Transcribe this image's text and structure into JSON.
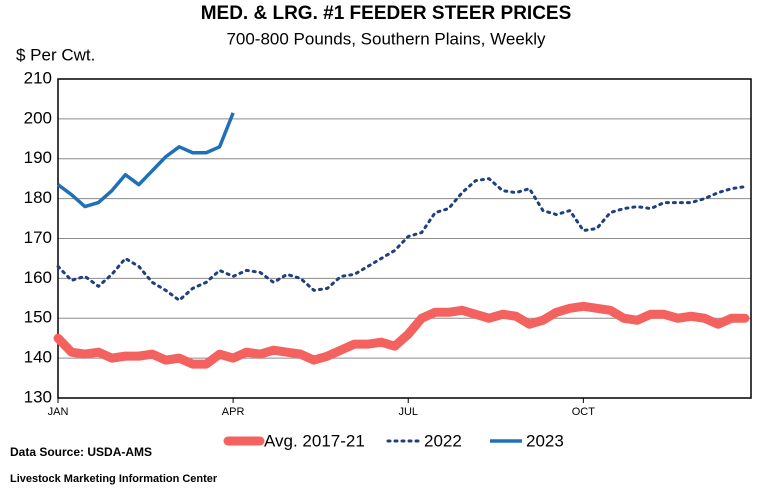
{
  "chart_data": {
    "type": "line",
    "title": "MED. & LRG. #1 FEEDER STEER PRICES",
    "subtitle": "700-800 Pounds, Southern Plains, Weekly",
    "y_label": "$ Per Cwt.",
    "source": "Data Source:  USDA-AMS",
    "credit": "Livestock Marketing Information Center",
    "categories": [
      "JAN",
      null,
      null,
      null,
      null,
      null,
      null,
      null,
      null,
      null,
      null,
      null,
      null,
      "APR",
      null,
      null,
      null,
      null,
      null,
      null,
      null,
      null,
      null,
      null,
      null,
      null,
      "JUL",
      null,
      null,
      null,
      null,
      null,
      null,
      null,
      null,
      null,
      null,
      null,
      null,
      "OCT",
      null,
      null,
      null,
      null,
      null,
      null,
      null,
      null,
      null,
      null,
      null,
      null
    ],
    "ylim": [
      130,
      210
    ],
    "yticks": [
      130,
      140,
      150,
      160,
      170,
      180,
      190,
      200,
      210
    ],
    "grid": true,
    "series": [
      {
        "name": "Avg. 2017-21",
        "color": "#f4625f",
        "style": "thick",
        "values": [
          145,
          141.5,
          141,
          141.5,
          140,
          140.5,
          140.5,
          141,
          139.5,
          140,
          138.5,
          138.5,
          141,
          140,
          141.5,
          141,
          142,
          141.5,
          141,
          139.5,
          140.5,
          142,
          143.5,
          143.5,
          144,
          143,
          146,
          150,
          151.5,
          151.5,
          152,
          151,
          150,
          151,
          150.5,
          148.5,
          149.5,
          151.5,
          152.5,
          153,
          152.5,
          152,
          150,
          149.5,
          151,
          151,
          150,
          150.5,
          150,
          148.5,
          150,
          150
        ]
      },
      {
        "name": "2022",
        "color": "#1f3f7f",
        "style": "dotted",
        "values": [
          163,
          159.5,
          160.5,
          158,
          161,
          165,
          163,
          159,
          157,
          154.5,
          157.5,
          159,
          162,
          160.5,
          162,
          161.5,
          159,
          161,
          160,
          157,
          157.5,
          160.5,
          161,
          163,
          165,
          167,
          170.5,
          171.5,
          176.5,
          177.5,
          181.5,
          184.5,
          185,
          182,
          181.5,
          182.5,
          177,
          176,
          177,
          172,
          172.5,
          176.5,
          177.5,
          178,
          177.5,
          179,
          179,
          179,
          180,
          181.5,
          182.5,
          183
        ]
      },
      {
        "name": "2023",
        "color": "#1f70b8",
        "style": "solid",
        "values": [
          183.5,
          181,
          178,
          179,
          182,
          186,
          183.5,
          187,
          190.5,
          193,
          191.5,
          191.5,
          193,
          201.5,
          null,
          null,
          null,
          null,
          null,
          null,
          null,
          null,
          null,
          null,
          null,
          null,
          null,
          null,
          null,
          null,
          null,
          null,
          null,
          null,
          null,
          null,
          null,
          null,
          null,
          null,
          null,
          null,
          null,
          null,
          null,
          null,
          null,
          null,
          null,
          null,
          null,
          null
        ]
      }
    ]
  }
}
